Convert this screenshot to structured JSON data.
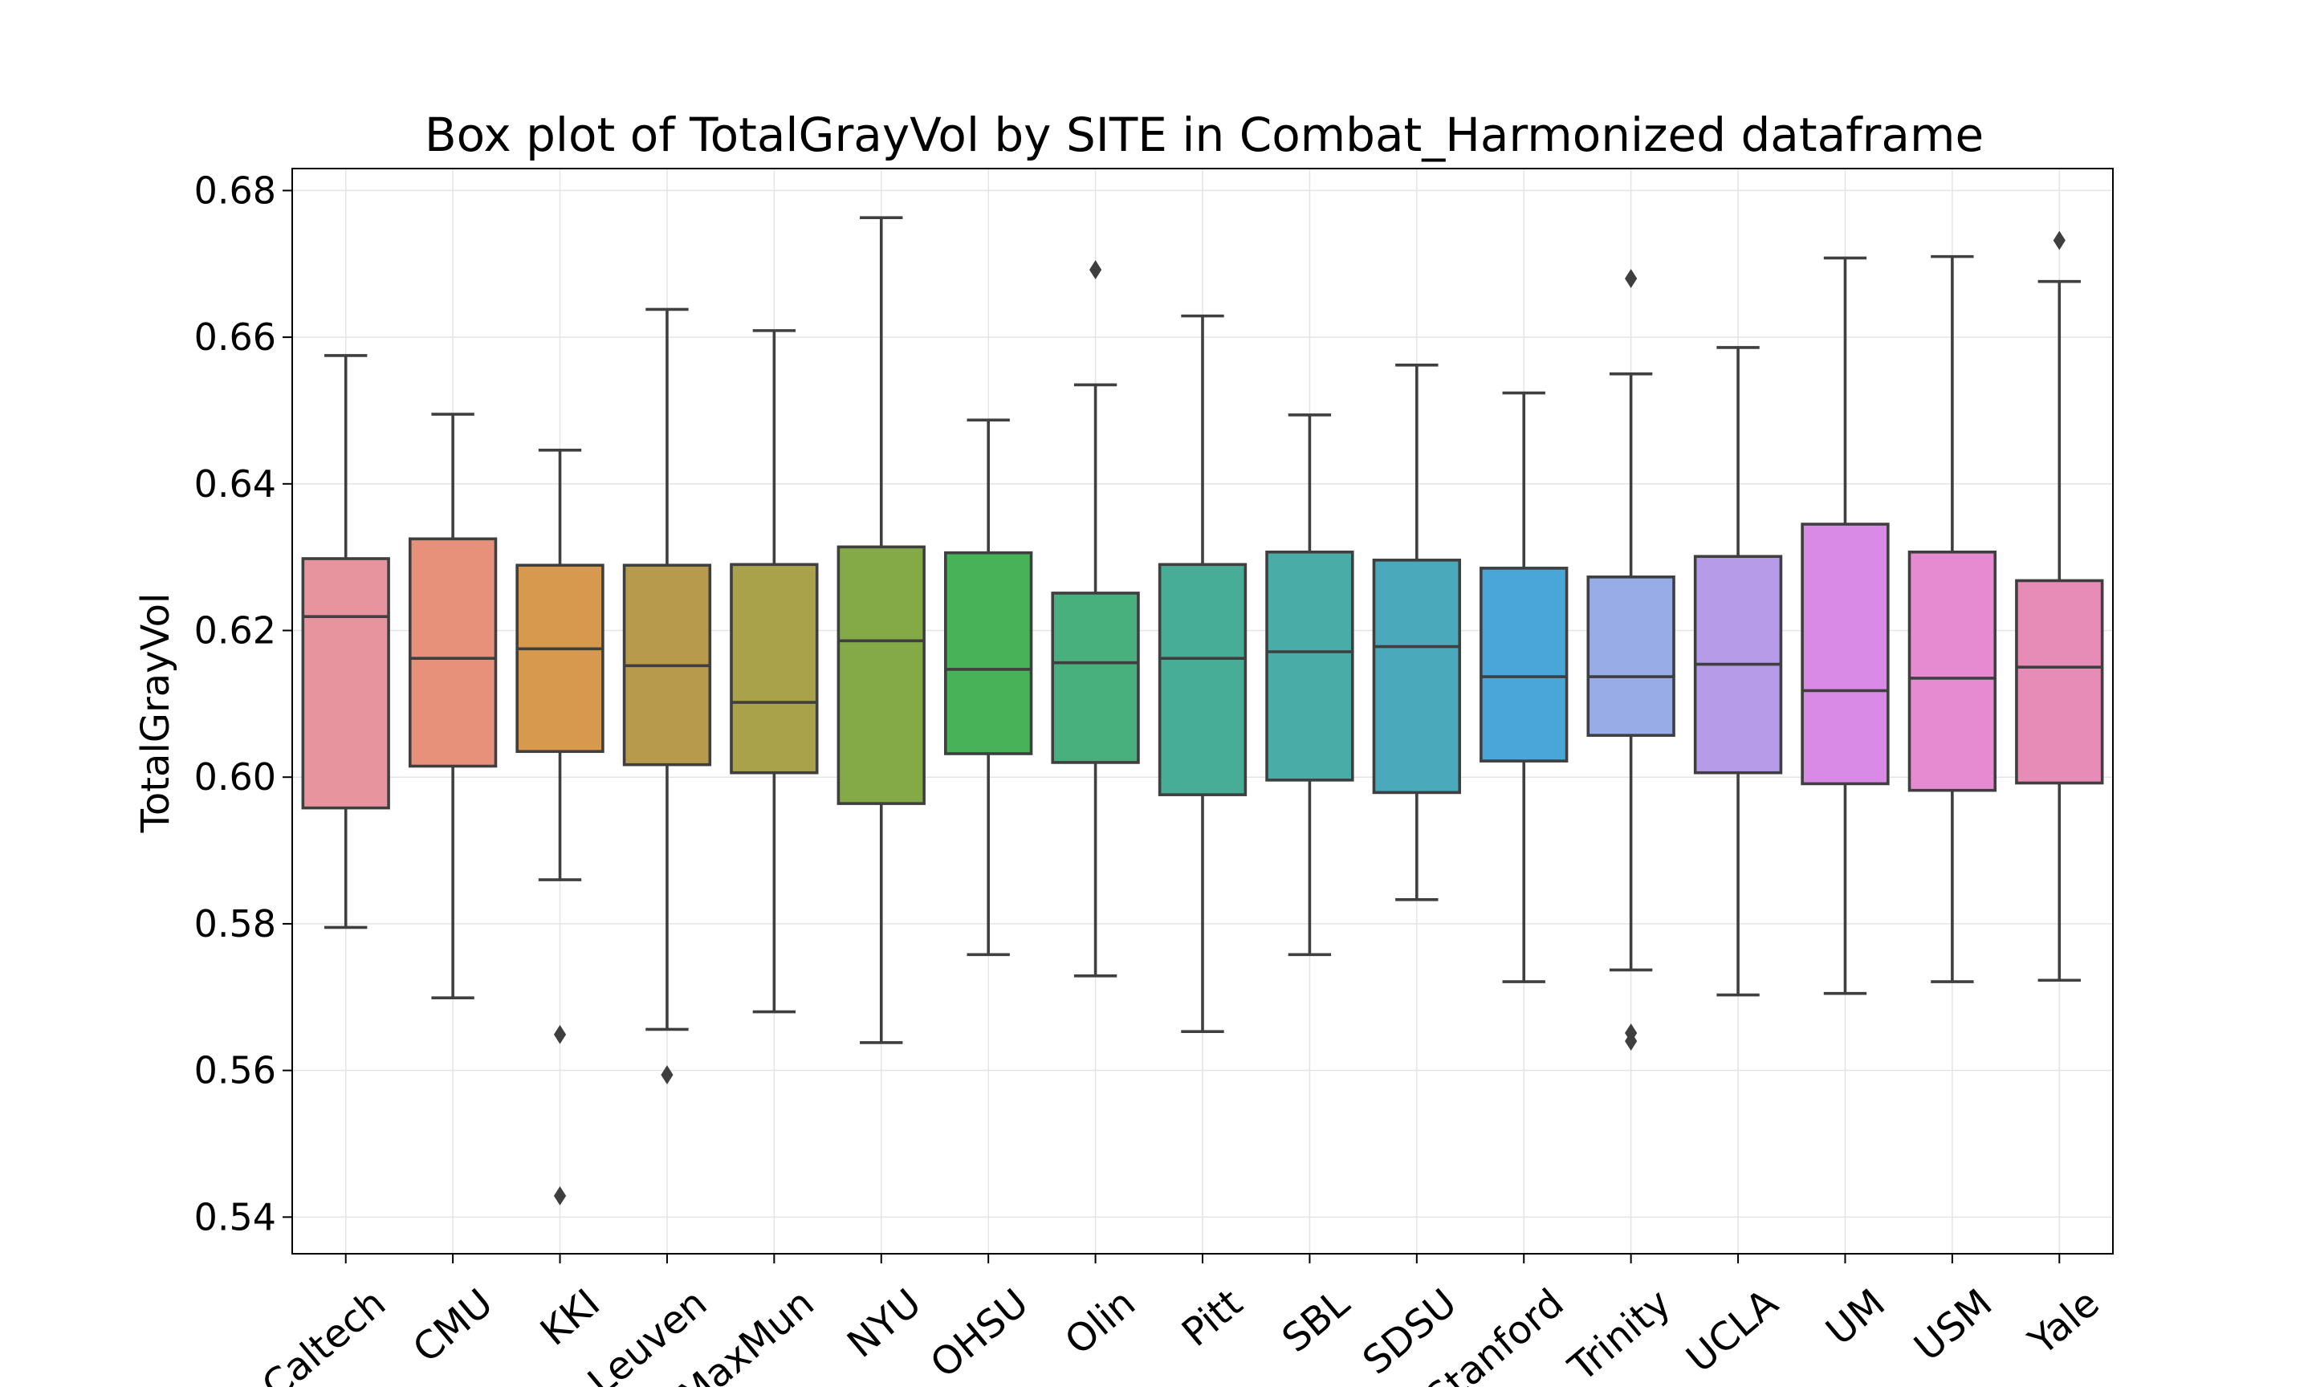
{
  "chart_data": {
    "type": "box",
    "title": "Box plot of TotalGrayVol by SITE in Combat_Harmonized dataframe",
    "xlabel": "",
    "ylabel": "TotalGrayVol",
    "ylim": [
      0.535,
      0.683
    ],
    "yticks": [
      0.54,
      0.56,
      0.58,
      0.6,
      0.62,
      0.64,
      0.66,
      0.68
    ],
    "ytick_labels": [
      "0.54",
      "0.56",
      "0.58",
      "0.60",
      "0.62",
      "0.64",
      "0.66",
      "0.68"
    ],
    "grid": true,
    "categories": [
      "Caltech",
      "CMU",
      "KKI",
      "Leuven",
      "MaxMun",
      "NYU",
      "OHSU",
      "Olin",
      "Pitt",
      "SBL",
      "SDSU",
      "Stanford",
      "Trinity",
      "UCLA",
      "UM",
      "USM",
      "Yale"
    ],
    "boxes": [
      {
        "site": "Caltech",
        "whisker_low": 0.5795,
        "q1": 0.5958,
        "median": 0.6219,
        "q3": 0.6298,
        "whisker_high": 0.6575,
        "fliers": [],
        "color": "#e8949f"
      },
      {
        "site": "CMU",
        "whisker_low": 0.5699,
        "q1": 0.6015,
        "median": 0.6162,
        "q3": 0.6325,
        "whisker_high": 0.6495,
        "fliers": [],
        "color": "#e8917a"
      },
      {
        "site": "KKI",
        "whisker_low": 0.586,
        "q1": 0.6035,
        "median": 0.6175,
        "q3": 0.6289,
        "whisker_high": 0.6446,
        "fliers": [
          0.5649,
          0.5429
        ],
        "color": "#d6994e"
      },
      {
        "site": "Leuven",
        "whisker_low": 0.5656,
        "q1": 0.6017,
        "median": 0.6152,
        "q3": 0.6289,
        "whisker_high": 0.6638,
        "fliers": [
          0.5594
        ],
        "color": "#b79a4c"
      },
      {
        "site": "MaxMun",
        "whisker_low": 0.568,
        "q1": 0.6006,
        "median": 0.6102,
        "q3": 0.629,
        "whisker_high": 0.6609,
        "fliers": [],
        "color": "#a9a24b"
      },
      {
        "site": "NYU",
        "whisker_low": 0.5638,
        "q1": 0.5964,
        "median": 0.6186,
        "q3": 0.6314,
        "whisker_high": 0.6763,
        "fliers": [],
        "color": "#84aa47"
      },
      {
        "site": "OHSU",
        "whisker_low": 0.5758,
        "q1": 0.6032,
        "median": 0.6147,
        "q3": 0.6306,
        "whisker_high": 0.6487,
        "fliers": [],
        "color": "#47b257"
      },
      {
        "site": "Olin",
        "whisker_low": 0.5729,
        "q1": 0.602,
        "median": 0.6156,
        "q3": 0.6251,
        "whisker_high": 0.6535,
        "fliers": [
          0.6692
        ],
        "color": "#47b07d"
      },
      {
        "site": "Pitt",
        "whisker_low": 0.5653,
        "q1": 0.5976,
        "median": 0.6162,
        "q3": 0.629,
        "whisker_high": 0.6629,
        "fliers": [],
        "color": "#48ad96"
      },
      {
        "site": "SBL",
        "whisker_low": 0.5758,
        "q1": 0.5996,
        "median": 0.6171,
        "q3": 0.6307,
        "whisker_high": 0.6494,
        "fliers": [],
        "color": "#49aca7"
      },
      {
        "site": "SDSU",
        "whisker_low": 0.5833,
        "q1": 0.5979,
        "median": 0.6178,
        "q3": 0.6296,
        "whisker_high": 0.6562,
        "fliers": [],
        "color": "#4aa9ba"
      },
      {
        "site": "Stanford",
        "whisker_low": 0.5721,
        "q1": 0.6022,
        "median": 0.6137,
        "q3": 0.6285,
        "whisker_high": 0.6524,
        "fliers": [],
        "color": "#4aa5d8"
      },
      {
        "site": "Trinity",
        "whisker_low": 0.5737,
        "q1": 0.6057,
        "median": 0.6137,
        "q3": 0.6273,
        "whisker_high": 0.655,
        "fliers": [
          0.668,
          0.5651,
          0.564
        ],
        "color": "#98ade8"
      },
      {
        "site": "UCLA",
        "whisker_low": 0.5703,
        "q1": 0.6006,
        "median": 0.6154,
        "q3": 0.6301,
        "whisker_high": 0.6586,
        "fliers": [],
        "color": "#b59be8"
      },
      {
        "site": "UM",
        "whisker_low": 0.5705,
        "q1": 0.5991,
        "median": 0.6118,
        "q3": 0.6345,
        "whisker_high": 0.6708,
        "fliers": [],
        "color": "#d98ae6"
      },
      {
        "site": "USM",
        "whisker_low": 0.5721,
        "q1": 0.5982,
        "median": 0.6135,
        "q3": 0.6307,
        "whisker_high": 0.671,
        "fliers": [],
        "color": "#e68ad2"
      },
      {
        "site": "Yale",
        "whisker_low": 0.5723,
        "q1": 0.5992,
        "median": 0.615,
        "q3": 0.6268,
        "whisker_high": 0.6676,
        "fliers": [
          0.6732
        ],
        "color": "#e68cb6"
      }
    ]
  }
}
